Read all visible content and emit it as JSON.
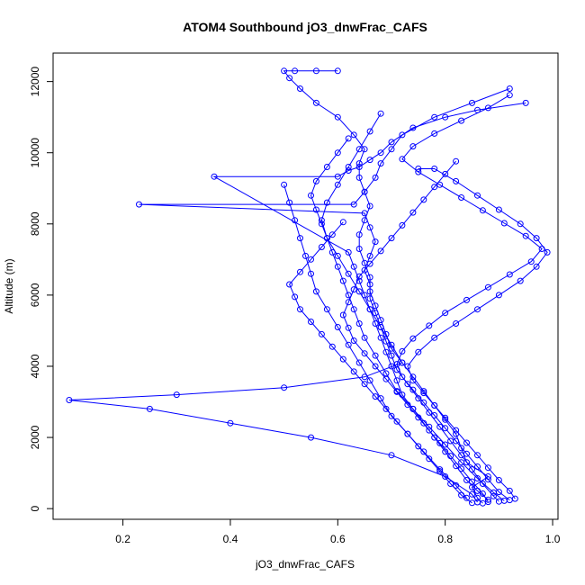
{
  "chart_data": {
    "type": "scatter",
    "title": "ATOM4 Southbound jO3_dnwFrac_CAFS",
    "xlabel": "jO3_dnwFrac_CAFS",
    "ylabel": "Altitude (m)",
    "xlim": [
      0.07,
      1.01
    ],
    "ylim": [
      -300,
      12800
    ],
    "x_ticks": [
      0.2,
      0.4,
      0.6,
      0.8,
      1.0
    ],
    "x_tick_labels": [
      "0.2",
      "0.4",
      "0.6",
      "0.8",
      "1.0"
    ],
    "y_ticks": [
      0,
      2000,
      4000,
      6000,
      8000,
      10000,
      12000
    ],
    "y_tick_labels": [
      "0",
      "2000",
      "4000",
      "6000",
      "8000",
      "10000",
      "12000"
    ],
    "grid": false,
    "legend": "none",
    "color": "#0000ff",
    "series": [
      {
        "x": [
          0.87,
          0.86,
          0.85,
          0.88,
          0.84,
          0.83,
          0.82,
          0.8,
          0.78,
          0.76,
          0.74,
          0.72,
          0.7,
          0.69,
          0.68,
          0.67,
          0.66,
          0.66,
          0.65,
          0.64,
          0.64,
          0.65,
          0.66,
          0.65,
          0.64,
          0.64,
          0.65,
          0.63,
          0.6,
          0.56,
          0.53,
          0.51,
          0.5,
          0.52,
          0.56,
          0.6
        ],
        "y": [
          150,
          300,
          600,
          900,
          1300,
          1700,
          2100,
          2500,
          2900,
          3300,
          3700,
          4100,
          4500,
          4900,
          5300,
          5700,
          6100,
          6500,
          6900,
          7300,
          7700,
          8100,
          8500,
          8900,
          9300,
          9700,
          10100,
          10500,
          11000,
          11400,
          11800,
          12100,
          12300,
          12300,
          12300,
          12300
        ]
      },
      {
        "x": [
          0.9,
          0.89,
          0.87,
          0.85,
          0.83,
          0.81,
          0.79,
          0.77,
          0.75,
          0.73,
          0.71,
          0.7,
          0.69,
          0.68,
          0.67,
          0.66,
          0.66,
          0.65,
          0.66,
          0.67,
          0.66,
          0.65,
          0.23,
          0.63,
          0.65,
          0.67,
          0.68,
          0.7,
          0.72,
          0.78,
          0.85,
          0.92
        ],
        "y": [
          200,
          350,
          700,
          1100,
          1500,
          1900,
          2300,
          2700,
          3100,
          3500,
          3900,
          4300,
          4700,
          5100,
          5500,
          5900,
          6300,
          6700,
          7100,
          7500,
          7900,
          8300,
          8550,
          8550,
          8900,
          9300,
          9700,
          10100,
          10500,
          11000,
          11400,
          11800
        ]
      },
      {
        "x": [
          0.88,
          0.86,
          0.84,
          0.82,
          0.8,
          0.78,
          0.76,
          0.74,
          0.72,
          0.71,
          0.7,
          0.69,
          0.68,
          0.67,
          0.66,
          0.65,
          0.64,
          0.63,
          0.62,
          0.37,
          0.6,
          0.62,
          0.64,
          0.66,
          0.68,
          0.7,
          0.74,
          0.8,
          0.86,
          0.95
        ],
        "y": [
          250,
          500,
          800,
          1200,
          1600,
          2000,
          2400,
          2800,
          3200,
          3600,
          4000,
          4400,
          4800,
          5200,
          5600,
          6000,
          6400,
          6800,
          7200,
          9330,
          9330,
          9500,
          9600,
          9800,
          10000,
          10300,
          10700,
          11000,
          11200,
          11400
        ]
      },
      {
        "x": [
          0.86,
          0.85,
          0.8,
          0.7,
          0.55,
          0.4,
          0.25,
          0.1,
          0.3,
          0.5,
          0.65,
          0.72,
          0.7,
          0.68,
          0.66,
          0.64,
          0.62,
          0.6,
          0.58,
          0.57,
          0.58,
          0.6,
          0.62,
          0.64,
          0.66,
          0.68
        ],
        "y": [
          180,
          400,
          900,
          1500,
          2000,
          2400,
          2800,
          3050,
          3200,
          3400,
          3700,
          4100,
          4600,
          5100,
          5600,
          6100,
          6600,
          7100,
          7600,
          8100,
          8600,
          9100,
          9600,
          10100,
          10600,
          11100
        ]
      },
      {
        "x": [
          0.91,
          0.89,
          0.86,
          0.83,
          0.8,
          0.77,
          0.74,
          0.71,
          0.69,
          0.67,
          0.65,
          0.64,
          0.63,
          0.62,
          0.61,
          0.6,
          0.59,
          0.58,
          0.57,
          0.56,
          0.55,
          0.56,
          0.58,
          0.6,
          0.62
        ],
        "y": [
          220,
          450,
          850,
          1300,
          1800,
          2300,
          2800,
          3300,
          3800,
          4300,
          4800,
          5200,
          5600,
          6000,
          6400,
          6800,
          7200,
          7600,
          8000,
          8400,
          8800,
          9200,
          9600,
          10000,
          10400
        ]
      },
      {
        "x": [
          0.84,
          0.82,
          0.79,
          0.76,
          0.73,
          0.7,
          0.68,
          0.66,
          0.64,
          0.62,
          0.6,
          0.58,
          0.56,
          0.55,
          0.54,
          0.53,
          0.52,
          0.51,
          0.5
        ],
        "y": [
          300,
          650,
          1100,
          1600,
          2100,
          2600,
          3100,
          3600,
          4100,
          4600,
          5100,
          5600,
          6100,
          6600,
          7100,
          7600,
          8100,
          8600,
          9100
        ]
      },
      {
        "x": [
          0.93,
          0.92,
          0.9,
          0.88,
          0.86,
          0.84,
          0.82,
          0.8,
          0.78,
          0.76,
          0.74,
          0.73,
          0.75,
          0.78,
          0.82,
          0.86,
          0.9,
          0.94,
          0.97,
          0.99,
          0.97,
          0.94,
          0.9,
          0.86,
          0.82,
          0.78,
          0.75
        ],
        "y": [
          280,
          500,
          800,
          1150,
          1500,
          1850,
          2200,
          2550,
          2900,
          3250,
          3600,
          4000,
          4400,
          4800,
          5200,
          5600,
          6000,
          6400,
          6800,
          7200,
          7600,
          8000,
          8400,
          8800,
          9200,
          9550,
          9550
        ]
      },
      {
        "x": [
          0.85,
          0.83,
          0.81,
          0.79,
          0.77,
          0.75,
          0.73,
          0.71,
          0.69,
          0.67,
          0.65,
          0.63,
          0.61,
          0.59,
          0.57,
          0.55,
          0.53,
          0.52,
          0.51,
          0.53,
          0.55,
          0.57,
          0.59,
          0.61
        ],
        "y": [
          160,
          380,
          700,
          1050,
          1400,
          1750,
          2100,
          2450,
          2800,
          3150,
          3500,
          3850,
          4200,
          4550,
          4900,
          5250,
          5600,
          5950,
          6300,
          6650,
          7000,
          7350,
          7700,
          8050
        ]
      },
      {
        "x": [
          0.88,
          0.87,
          0.85,
          0.83,
          0.81,
          0.79,
          0.77,
          0.75,
          0.73,
          0.71,
          0.69,
          0.67,
          0.65,
          0.63,
          0.62,
          0.61,
          0.62,
          0.63,
          0.64,
          0.66,
          0.68,
          0.7,
          0.72,
          0.74,
          0.76,
          0.78,
          0.8,
          0.82
        ],
        "y": [
          190,
          420,
          760,
          1120,
          1480,
          1840,
          2200,
          2560,
          2920,
          3280,
          3640,
          4000,
          4360,
          4720,
          5080,
          5440,
          5800,
          6160,
          6520,
          6880,
          7240,
          7600,
          7960,
          8320,
          8680,
          9040,
          9400,
          9760
        ]
      },
      {
        "x": [
          0.92,
          0.9,
          0.88,
          0.86,
          0.84,
          0.82,
          0.8,
          0.78,
          0.76,
          0.74,
          0.72,
          0.71,
          0.72,
          0.74,
          0.77,
          0.8,
          0.84,
          0.88,
          0.92,
          0.96,
          0.98,
          0.95,
          0.91,
          0.87,
          0.83,
          0.79,
          0.75,
          0.72,
          0.74,
          0.78,
          0.83,
          0.88,
          0.92
        ],
        "y": [
          240,
          470,
          820,
          1180,
          1540,
          1900,
          2260,
          2620,
          2980,
          3340,
          3700,
          4060,
          4420,
          4780,
          5140,
          5500,
          5860,
          6220,
          6580,
          6940,
          7300,
          7660,
          8020,
          8380,
          8740,
          9100,
          9460,
          9820,
          10180,
          10540,
          10900,
          11260,
          11620
        ]
      }
    ]
  }
}
